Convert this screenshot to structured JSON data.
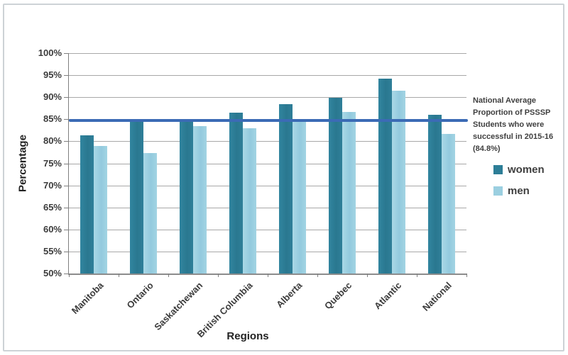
{
  "chart_data": {
    "type": "bar",
    "title": "",
    "xlabel": "Regions",
    "ylabel": "Percentage",
    "ylim": [
      50,
      100
    ],
    "ytick_step": 5,
    "ytick_labels": [
      "50%",
      "55%",
      "60%",
      "65%",
      "70%",
      "75%",
      "80%",
      "85%",
      "90%",
      "95%",
      "100%"
    ],
    "grid": true,
    "categories": [
      "Manitoba",
      "Ontario",
      "Saskatchewan",
      "British Columbia",
      "Alberta",
      "Quebec",
      "Atlantic",
      "National"
    ],
    "series": [
      {
        "name": "women",
        "color": "#2d7e97",
        "values": [
          81.4,
          84.7,
          84.9,
          86.5,
          88.4,
          89.8,
          94.2,
          86.0
        ]
      },
      {
        "name": "men",
        "color": "#9bcfe0",
        "values": [
          79.0,
          77.3,
          83.4,
          82.9,
          84.4,
          86.6,
          91.4,
          81.7
        ]
      }
    ],
    "reference_line": {
      "value": 84.8,
      "color": "#3b6bb5",
      "annotation": "National Average Proportion of PSSSP Students who were successful in 2015-16 (84.8%)"
    },
    "legend": {
      "position": "right",
      "items": [
        "women",
        "men"
      ]
    }
  },
  "colors": {
    "gridline": "#a8a8a8",
    "axis": "#7f7f7f",
    "frame_border": "#cdd2d6"
  }
}
